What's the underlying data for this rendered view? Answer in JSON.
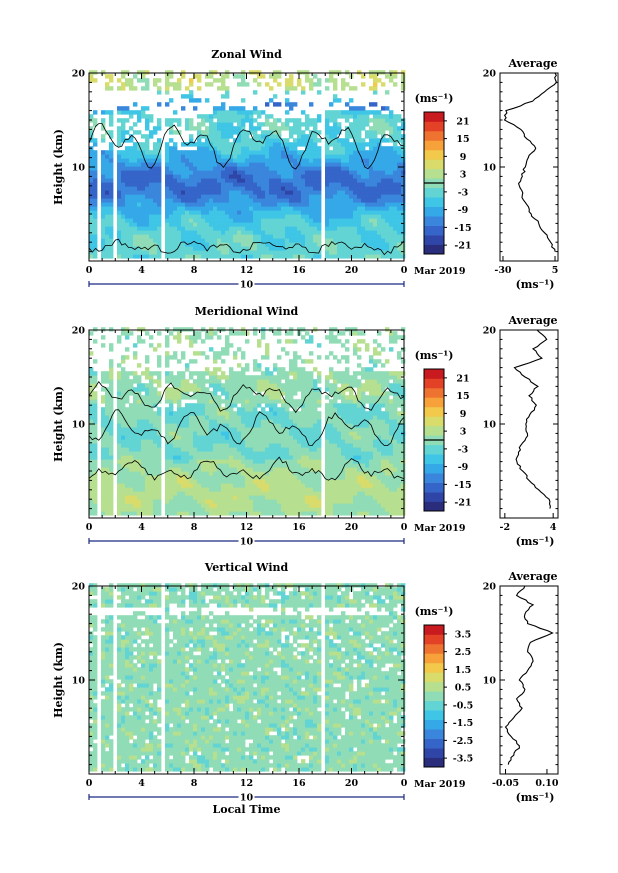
{
  "colors": {
    "scale": [
      "#2a2d7c",
      "#2f46a8",
      "#3565c9",
      "#3a86dc",
      "#35a8e8",
      "#3fc5e6",
      "#62d4d4",
      "#8fdcb6",
      "#b6e08f",
      "#d9dc6a",
      "#f2c94b",
      "#f6a13a",
      "#ef7330",
      "#e34227",
      "#c81a1f"
    ],
    "axis_accent": "#1b2b80"
  },
  "chart_data": [
    {
      "type": "heatmap",
      "title": "Zonal Wind",
      "ylabel": "Height (km)",
      "xlabel": "",
      "x_tick_labels": [
        "0",
        "4",
        "8",
        "12",
        "16",
        "20",
        "0"
      ],
      "y_tick_labels": [
        "10",
        "20"
      ],
      "xlim": [
        0,
        24
      ],
      "ylim": [
        0,
        20
      ],
      "date_marker": "10",
      "date_label": "Mar 2019",
      "colorbar": {
        "unit": "(ms⁻¹)",
        "ticks": [
          "21",
          "15",
          "9",
          "3",
          "-3",
          "-9",
          "-15",
          "-21"
        ],
        "range": [
          -24,
          24
        ],
        "zero_contour": true
      },
      "missing_columns_hours": [
        0.5,
        1.9,
        2.9,
        5.6,
        17.6
      ],
      "profile": {
        "title": "Average",
        "xlabel": "(ms⁻¹)",
        "x_tick_labels": [
          "-30",
          "5"
        ],
        "xlim": [
          -32,
          7
        ],
        "y_tick_labels": [
          "10",
          "20"
        ],
        "heights": [
          1,
          2,
          3,
          4,
          5,
          6,
          7,
          8,
          9,
          10,
          11,
          12,
          13,
          14,
          15,
          16,
          17,
          18,
          19,
          20
        ],
        "values": [
          5,
          2,
          -2,
          -6,
          -11,
          -14,
          -17,
          -19,
          -17,
          -15,
          -13,
          -8,
          -14,
          -18,
          -29,
          -28,
          -10,
          -2,
          6,
          5
        ]
      }
    },
    {
      "type": "heatmap",
      "title": "Meridional Wind",
      "ylabel": "Height (km)",
      "xlabel": "",
      "x_tick_labels": [
        "0",
        "4",
        "8",
        "12",
        "16",
        "20",
        "0"
      ],
      "y_tick_labels": [
        "10",
        "20"
      ],
      "xlim": [
        0,
        24
      ],
      "ylim": [
        0,
        20
      ],
      "date_marker": "10",
      "date_label": "Mar 2019",
      "colorbar": {
        "unit": "(ms⁻¹)",
        "ticks": [
          "21",
          "15",
          "9",
          "3",
          "-3",
          "-9",
          "-15",
          "-21"
        ],
        "range": [
          -24,
          24
        ],
        "zero_contour": true
      },
      "missing_columns_hours": [
        0.5,
        1.9,
        2.9,
        5.6,
        17.6
      ],
      "profile": {
        "title": "Average",
        "xlabel": "(ms⁻¹)",
        "x_tick_labels": [
          "-2",
          "4"
        ],
        "xlim": [
          -2.6,
          4.6
        ],
        "y_tick_labels": [
          "10",
          "20"
        ],
        "heights": [
          1,
          2,
          3,
          4,
          5,
          6,
          7,
          8,
          9,
          10,
          11,
          12,
          13,
          14,
          15,
          16,
          17,
          18,
          19,
          20
        ],
        "values": [
          3.6,
          3.5,
          2.2,
          1.0,
          0.2,
          -0.5,
          -0.3,
          0.2,
          0.8,
          0.6,
          1.1,
          1.9,
          1.0,
          2.1,
          0.5,
          -0.8,
          2.6,
          1.5,
          3.2,
          2.0
        ]
      }
    },
    {
      "type": "heatmap",
      "title": "Vertical Wind",
      "ylabel": "Height (km)",
      "xlabel": "Local Time",
      "x_tick_labels": [
        "0",
        "4",
        "8",
        "12",
        "16",
        "20",
        "0"
      ],
      "y_tick_labels": [
        "10",
        "20"
      ],
      "xlim": [
        0,
        24
      ],
      "ylim": [
        0,
        20
      ],
      "date_marker": "10",
      "date_label": "Mar 2019",
      "colorbar": {
        "unit": "(ms⁻¹)",
        "ticks": [
          "3.5",
          "2.5",
          "1.5",
          "0.5",
          "-0.5",
          "-1.5",
          "-2.5",
          "-3.5"
        ],
        "range": [
          -4,
          4
        ],
        "zero_contour": false
      },
      "missing_columns_hours": [
        0.5,
        1.9,
        2.9,
        5.6,
        17.6
      ],
      "profile": {
        "title": "Average",
        "xlabel": "(ms⁻¹)",
        "x_tick_labels": [
          "-0.05",
          "0.10"
        ],
        "xlim": [
          -0.07,
          0.14
        ],
        "y_tick_labels": [
          "10",
          "20"
        ],
        "heights": [
          1,
          2,
          3,
          4,
          5,
          6,
          7,
          8,
          9,
          10,
          11,
          12,
          13,
          14,
          15,
          16,
          17,
          18,
          19,
          20
        ],
        "values": [
          -0.04,
          -0.02,
          0.0,
          -0.03,
          -0.05,
          -0.02,
          0.01,
          -0.01,
          0.02,
          0.0,
          0.03,
          0.05,
          0.03,
          0.04,
          0.12,
          0.03,
          0.02,
          0.05,
          -0.01,
          0.02
        ]
      }
    }
  ]
}
